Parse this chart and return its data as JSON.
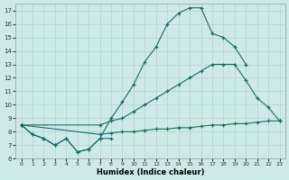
{
  "xlabel": "Humidex (Indice chaleur)",
  "bg_color": "#ceeae7",
  "grid_color": "#b0d4d0",
  "line_color": "#1a6b6b",
  "xlim": [
    -0.5,
    23.5
  ],
  "ylim": [
    6,
    17.5
  ],
  "xticks": [
    0,
    1,
    2,
    3,
    4,
    5,
    6,
    7,
    8,
    9,
    10,
    11,
    12,
    13,
    14,
    15,
    16,
    17,
    18,
    19,
    20,
    21,
    22,
    23
  ],
  "yticks": [
    6,
    7,
    8,
    9,
    10,
    11,
    12,
    13,
    14,
    15,
    16,
    17
  ],
  "series": [
    {
      "x": [
        0,
        1,
        2,
        3,
        4,
        5,
        6,
        7,
        8,
        9,
        10,
        11,
        12,
        13,
        14,
        15,
        16,
        17,
        18,
        19,
        20
      ],
      "y": [
        8.5,
        7.8,
        7.5,
        7.0,
        7.5,
        6.5,
        6.7,
        7.5,
        9.0,
        10.2,
        11.5,
        13.2,
        14.3,
        16.0,
        16.8,
        17.2,
        17.2,
        15.3,
        15.0,
        14.3,
        13.0
      ]
    },
    {
      "x": [
        0,
        7,
        8,
        9,
        10,
        11,
        12,
        13,
        14,
        15,
        16,
        17,
        18,
        19,
        20,
        21,
        22,
        23
      ],
      "y": [
        8.5,
        8.5,
        8.8,
        9.0,
        9.5,
        10.0,
        10.5,
        11.0,
        11.5,
        12.0,
        12.5,
        13.0,
        13.0,
        13.0,
        11.8,
        10.5,
        9.8,
        8.8
      ]
    },
    {
      "x": [
        0,
        7,
        8,
        9,
        10,
        11,
        12,
        13,
        14,
        15,
        16,
        17,
        18,
        19,
        20,
        21,
        22,
        23
      ],
      "y": [
        8.5,
        7.8,
        7.9,
        8.0,
        8.0,
        8.1,
        8.2,
        8.2,
        8.3,
        8.3,
        8.4,
        8.5,
        8.5,
        8.6,
        8.6,
        8.7,
        8.8,
        8.8
      ]
    },
    {
      "x": [
        0,
        1,
        2,
        3,
        4,
        5,
        6,
        7,
        8
      ],
      "y": [
        8.5,
        7.8,
        7.5,
        7.0,
        7.5,
        6.5,
        6.7,
        7.5,
        7.5
      ]
    }
  ]
}
